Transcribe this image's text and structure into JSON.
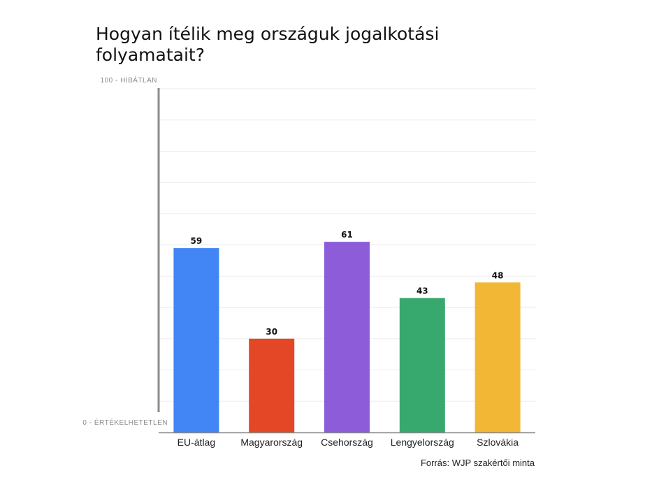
{
  "title": "Hogyan ítélik meg országuk jogalkotási folyamatait?",
  "source": "Forrás: WJP szakértői minta",
  "chart_data": {
    "type": "bar",
    "title": "Hogyan ítélik meg országuk jogalkotási folyamatait?",
    "categories": [
      "EU-átlag",
      "Magyarország",
      "Csehország",
      "Lengyelország",
      "Szlovákia"
    ],
    "values": [
      59,
      30,
      61,
      43,
      48
    ],
    "colors": [
      "#4285f4",
      "#e34726",
      "#8c5cd9",
      "#38a96e",
      "#f2b835"
    ],
    "y_axis_labels": {
      "max": "100 - HIBÁTLAN",
      "min": "0 - ÉRTÉKELHETETLEN"
    },
    "ylim": [
      0,
      110
    ],
    "grid": true,
    "data_labels": true
  }
}
